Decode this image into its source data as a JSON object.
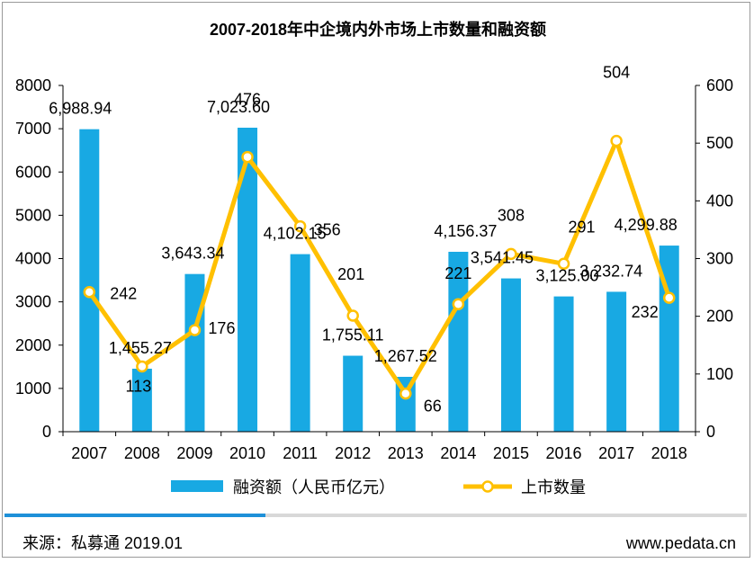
{
  "chart_data": {
    "type": "bar",
    "title": "2007-2018年中企境内外市场上市数量和融资额",
    "categories": [
      "2007",
      "2008",
      "2009",
      "2010",
      "2011",
      "2012",
      "2013",
      "2014",
      "2015",
      "2016",
      "2017",
      "2018"
    ],
    "series": [
      {
        "name": "融资额（人民币亿元）",
        "type": "bar",
        "axis": "left",
        "values": [
          6988.94,
          1455.27,
          3643.34,
          7023.6,
          4102.15,
          1755.11,
          1267.52,
          4156.37,
          3541.45,
          3125.0,
          3232.74,
          4299.88
        ],
        "labels": [
          "6,988.94",
          "1,455.27",
          "3,643.34",
          "7,023.60",
          "4,102.15",
          "1,755.11",
          "1,267.52",
          "4,156.37",
          "3,541.45",
          "3,125.00",
          "3,232.74",
          "4,299.88"
        ]
      },
      {
        "name": "上市数量",
        "type": "line",
        "axis": "right",
        "values": [
          242,
          113,
          176,
          476,
          356,
          201,
          66,
          221,
          308,
          291,
          504,
          232
        ],
        "labels": [
          "242",
          "113",
          "176",
          "476",
          "356",
          "201",
          "66",
          "221",
          "308",
          "291",
          "504",
          "232"
        ]
      }
    ],
    "y_left": {
      "min": 0,
      "max": 8000,
      "ticks": [
        "0",
        "1000",
        "2000",
        "3000",
        "4000",
        "5000",
        "6000",
        "7000",
        "8000"
      ]
    },
    "y_right": {
      "min": 0,
      "max": 600,
      "ticks": [
        "0",
        "100",
        "200",
        "300",
        "400",
        "500",
        "600"
      ]
    },
    "colors": {
      "bar": "#18A9E3",
      "line": "#FFC000",
      "marker_fill": "#FFFFFF",
      "footer_line_left": "#1E90D8",
      "footer_line_right": "#D8D8D8"
    }
  },
  "footer": {
    "source": "来源：私募通 2019.01",
    "site": "www.pedata.cn"
  }
}
